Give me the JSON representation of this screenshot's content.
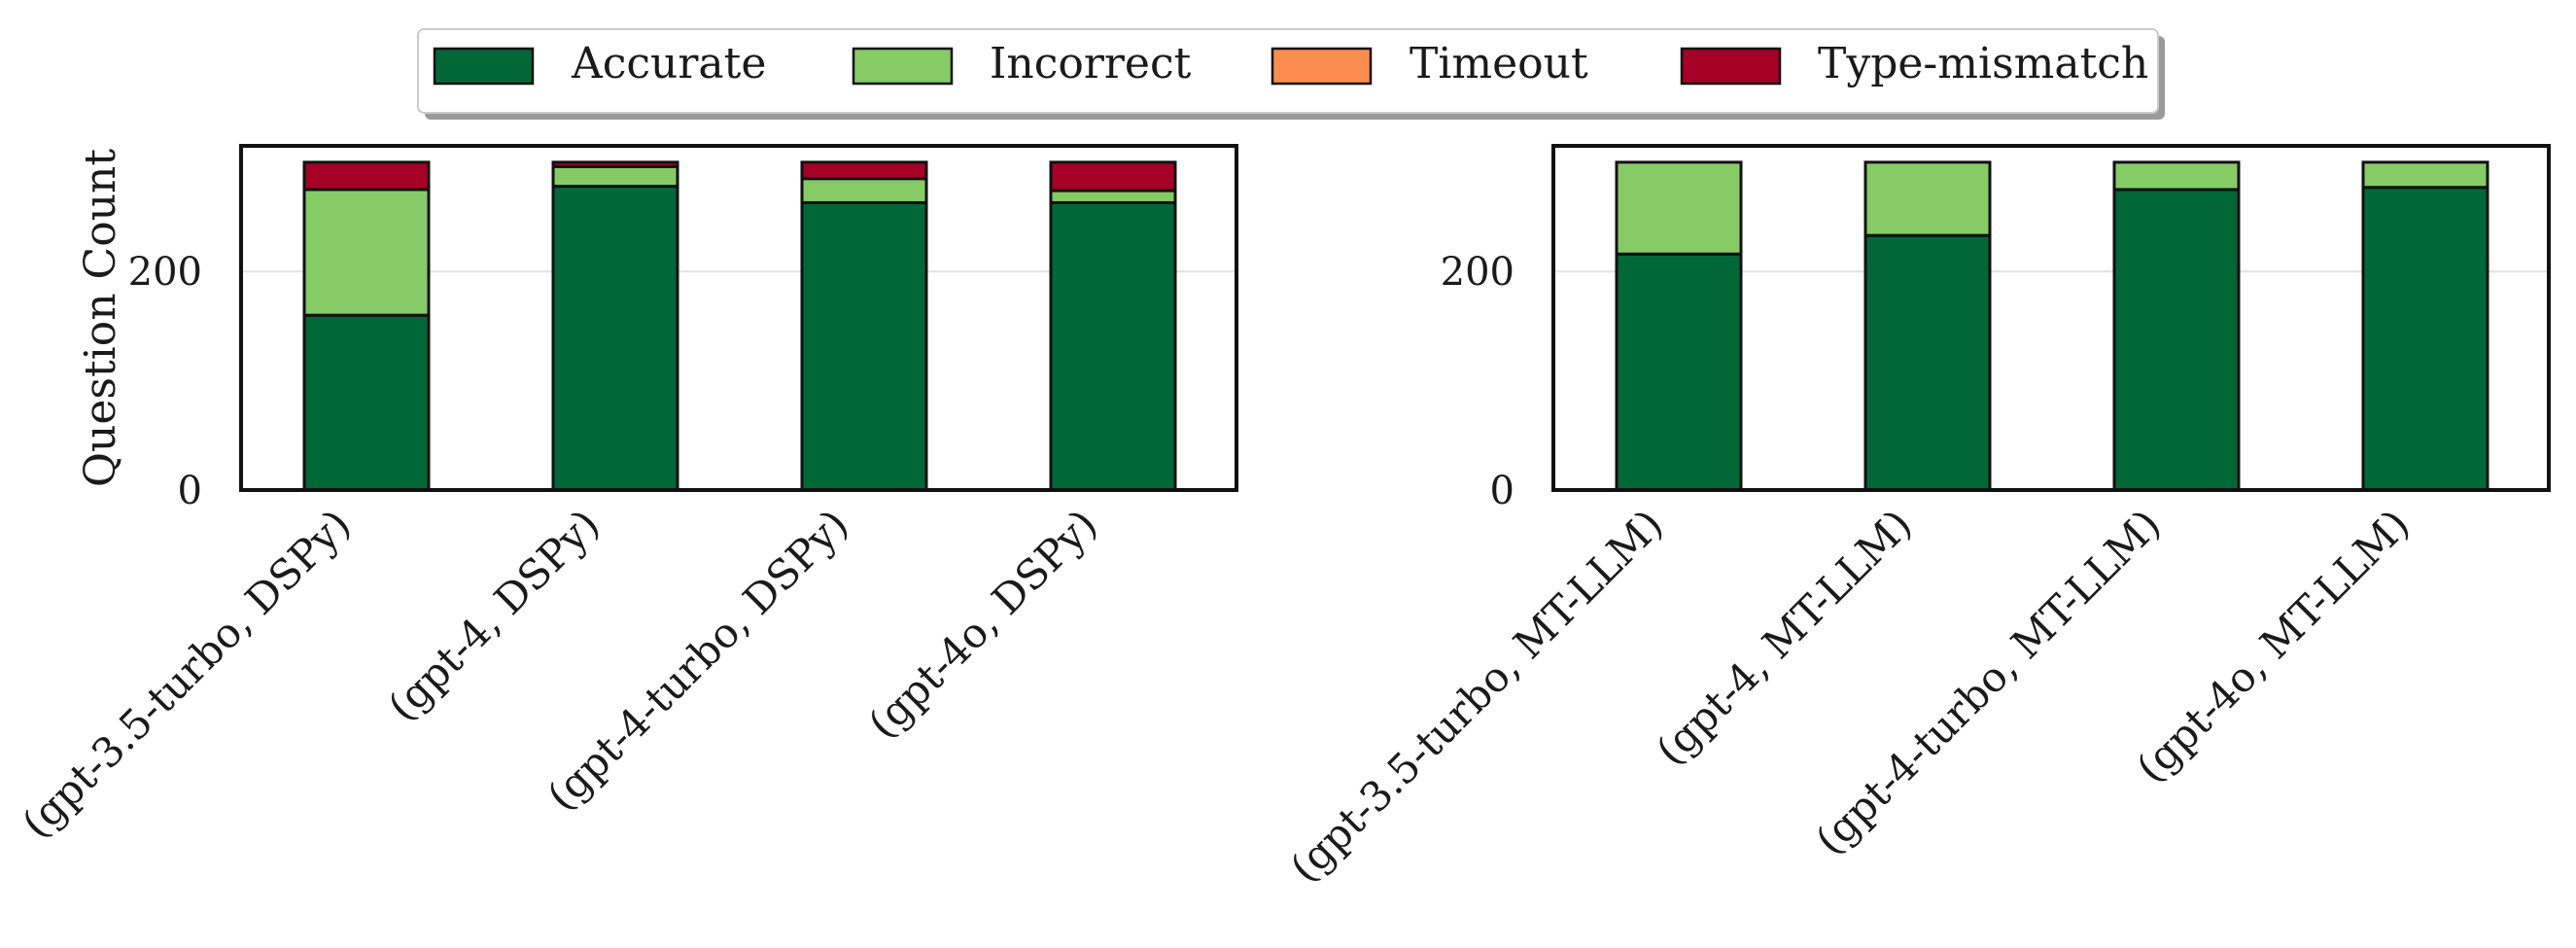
{
  "legend": {
    "items": [
      {
        "label": "Accurate",
        "color": "#006837"
      },
      {
        "label": "Incorrect",
        "color": "#86cb66"
      },
      {
        "label": "Timeout",
        "color": "#fd8d4c"
      },
      {
        "label": "Type-mismatch",
        "color": "#a50026"
      }
    ],
    "placement": "top-center"
  },
  "chart_data": [
    {
      "type": "bar",
      "stacked": true,
      "ylabel": "Question Count",
      "xlabel": "",
      "ylim": [
        0,
        315
      ],
      "yticks": [
        0,
        200
      ],
      "grid": "horizontal",
      "categories": [
        "(gpt-3.5-turbo, DSPy)",
        "(gpt-4, DSPy)",
        "(gpt-4-turbo, DSPy)",
        "(gpt-4o, DSPy)"
      ],
      "series": [
        {
          "name": "Accurate",
          "values": [
            160,
            278,
            263,
            263
          ]
        },
        {
          "name": "Incorrect",
          "values": [
            115,
            18,
            22,
            11
          ]
        },
        {
          "name": "Timeout",
          "values": [
            0,
            0,
            0,
            0
          ]
        },
        {
          "name": "Type-mismatch",
          "values": [
            25,
            4,
            15,
            26
          ]
        }
      ]
    },
    {
      "type": "bar",
      "stacked": true,
      "ylabel": "",
      "xlabel": "",
      "ylim": [
        0,
        315
      ],
      "yticks": [
        0,
        200
      ],
      "grid": "horizontal",
      "categories": [
        "(gpt-3.5-turbo, MT-LLM)",
        "(gpt-4, MT-LLM)",
        "(gpt-4-turbo, MT-LLM)",
        "(gpt-4o, MT-LLM)"
      ],
      "series": [
        {
          "name": "Accurate",
          "values": [
            216,
            233,
            275,
            277
          ]
        },
        {
          "name": "Incorrect",
          "values": [
            84,
            67,
            25,
            23
          ]
        },
        {
          "name": "Timeout",
          "values": [
            0,
            0,
            0,
            0
          ]
        },
        {
          "name": "Type-mismatch",
          "values": [
            0,
            0,
            0,
            0
          ]
        }
      ]
    }
  ]
}
